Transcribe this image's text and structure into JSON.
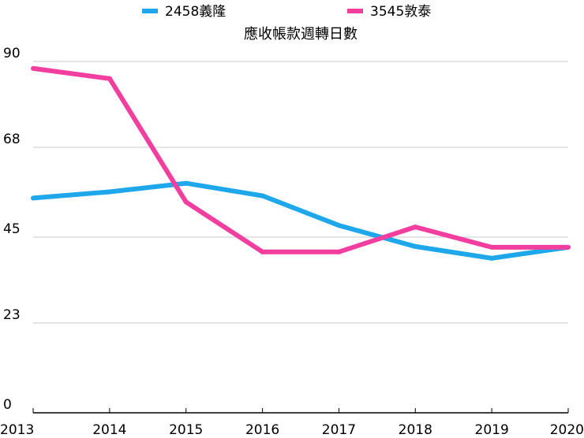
{
  "chart_data": {
    "type": "line",
    "title": "應收帳款週轉日數",
    "xlabel": "",
    "ylabel": "",
    "categories": [
      "2013",
      "2014",
      "2015",
      "2016",
      "2017",
      "2018",
      "2019",
      "2020"
    ],
    "y_ticks": [
      "0",
      "23",
      "45",
      "68",
      "90"
    ],
    "ylim": [
      0,
      90
    ],
    "grid": true,
    "legend_position": "top",
    "series": [
      {
        "name": "2458義隆",
        "color": "#1ea7ea",
        "values": [
          55,
          56.6,
          58.8,
          55.6,
          48,
          42.6,
          39.6,
          42.4
        ]
      },
      {
        "name": "3545敦泰",
        "color": "#f23f9f",
        "values": [
          88.2,
          85.6,
          54,
          41.2,
          41.2,
          47.6,
          42.4,
          42.4
        ]
      }
    ]
  }
}
